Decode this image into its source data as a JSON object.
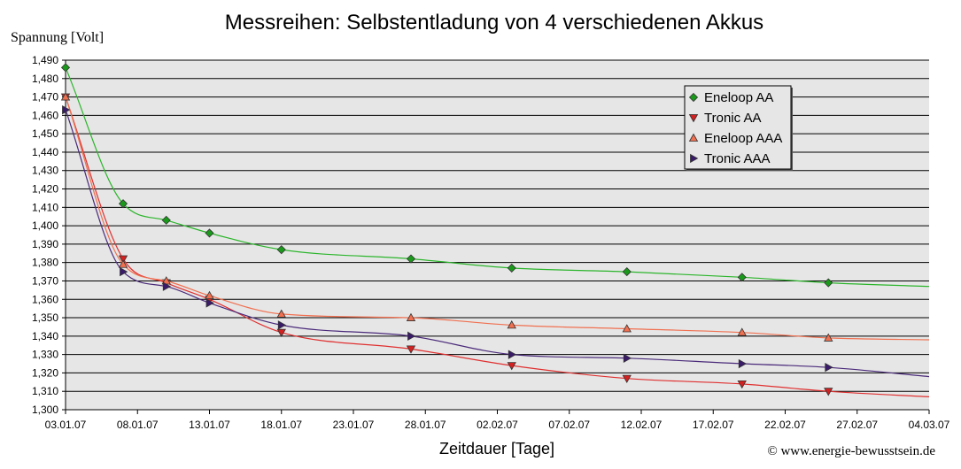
{
  "chart_data": {
    "type": "line",
    "title": "Messreihen: Selbstentladung von 4 verschiedenen Akkus",
    "ylabel": "Spannung [Volt]",
    "xlabel": "Zeitdauer [Tage]",
    "copyright": "© www.energie-bewusstsein.de",
    "x_ticks": [
      "03.01.07",
      "08.01.07",
      "13.01.07",
      "18.01.07",
      "23.01.07",
      "28.01.07",
      "02.02.07",
      "07.02.07",
      "12.02.07",
      "17.02.07",
      "22.02.07",
      "27.02.07",
      "04.03.07"
    ],
    "xlim_days": [
      0,
      60
    ],
    "ylim": [
      1.3,
      1.49
    ],
    "y_ticks": [
      "1,300",
      "1,310",
      "1,320",
      "1,330",
      "1,340",
      "1,350",
      "1,360",
      "1,370",
      "1,380",
      "1,390",
      "1,400",
      "1,410",
      "1,420",
      "1,430",
      "1,440",
      "1,450",
      "1,460",
      "1,470",
      "1,480",
      "1,490"
    ],
    "grid": true,
    "legend_position": "top-right",
    "series": [
      {
        "name": "Eneloop AA",
        "color": "#1a9a1a",
        "line_color": "#2bb52b",
        "marker": "diamond",
        "x": [
          "03.01.07",
          "07.01.07",
          "10.01.07",
          "13.01.07",
          "18.01.07",
          "27.01.07",
          "03.02.07",
          "11.02.07",
          "19.02.07",
          "25.02.07"
        ],
        "x_days": [
          0,
          4,
          7,
          10,
          15,
          24,
          31,
          39,
          47,
          53
        ],
        "y": [
          1.486,
          1.412,
          1.403,
          1.396,
          1.387,
          1.382,
          1.377,
          1.375,
          1.372,
          1.369
        ],
        "trend_end": 1.367
      },
      {
        "name": "Tronic AA",
        "color": "#d42020",
        "line_color": "#e03030",
        "marker": "triangle-down",
        "x": [
          "03.01.07",
          "07.01.07",
          "10.01.07",
          "13.01.07",
          "18.01.07",
          "27.01.07",
          "03.02.07",
          "11.02.07",
          "19.02.07",
          "25.02.07"
        ],
        "x_days": [
          0,
          4,
          7,
          10,
          15,
          24,
          31,
          39,
          47,
          53
        ],
        "y": [
          1.47,
          1.382,
          1.369,
          1.36,
          1.342,
          1.333,
          1.324,
          1.317,
          1.314,
          1.31
        ],
        "trend_end": 1.307
      },
      {
        "name": "Eneloop AAA",
        "color": "#f07050",
        "line_color": "#f07050",
        "marker": "triangle-up",
        "x": [
          "03.01.07",
          "07.01.07",
          "10.01.07",
          "13.01.07",
          "18.01.07",
          "27.01.07",
          "03.02.07",
          "11.02.07",
          "19.02.07",
          "25.02.07"
        ],
        "x_days": [
          0,
          4,
          7,
          10,
          15,
          24,
          31,
          39,
          47,
          53
        ],
        "y": [
          1.47,
          1.379,
          1.37,
          1.362,
          1.352,
          1.35,
          1.346,
          1.344,
          1.342,
          1.339
        ],
        "trend_end": 1.338
      },
      {
        "name": "Tronic AAA",
        "color": "#3a1a6a",
        "line_color": "#4a2a7a",
        "marker": "triangle-right",
        "x": [
          "03.01.07",
          "07.01.07",
          "10.01.07",
          "13.01.07",
          "18.01.07",
          "27.01.07",
          "03.02.07",
          "11.02.07",
          "19.02.07",
          "25.02.07"
        ],
        "x_days": [
          0,
          4,
          7,
          10,
          15,
          24,
          31,
          39,
          47,
          53
        ],
        "y": [
          1.463,
          1.375,
          1.367,
          1.358,
          1.346,
          1.34,
          1.33,
          1.328,
          1.325,
          1.323
        ],
        "trend_end": 1.318
      }
    ]
  }
}
